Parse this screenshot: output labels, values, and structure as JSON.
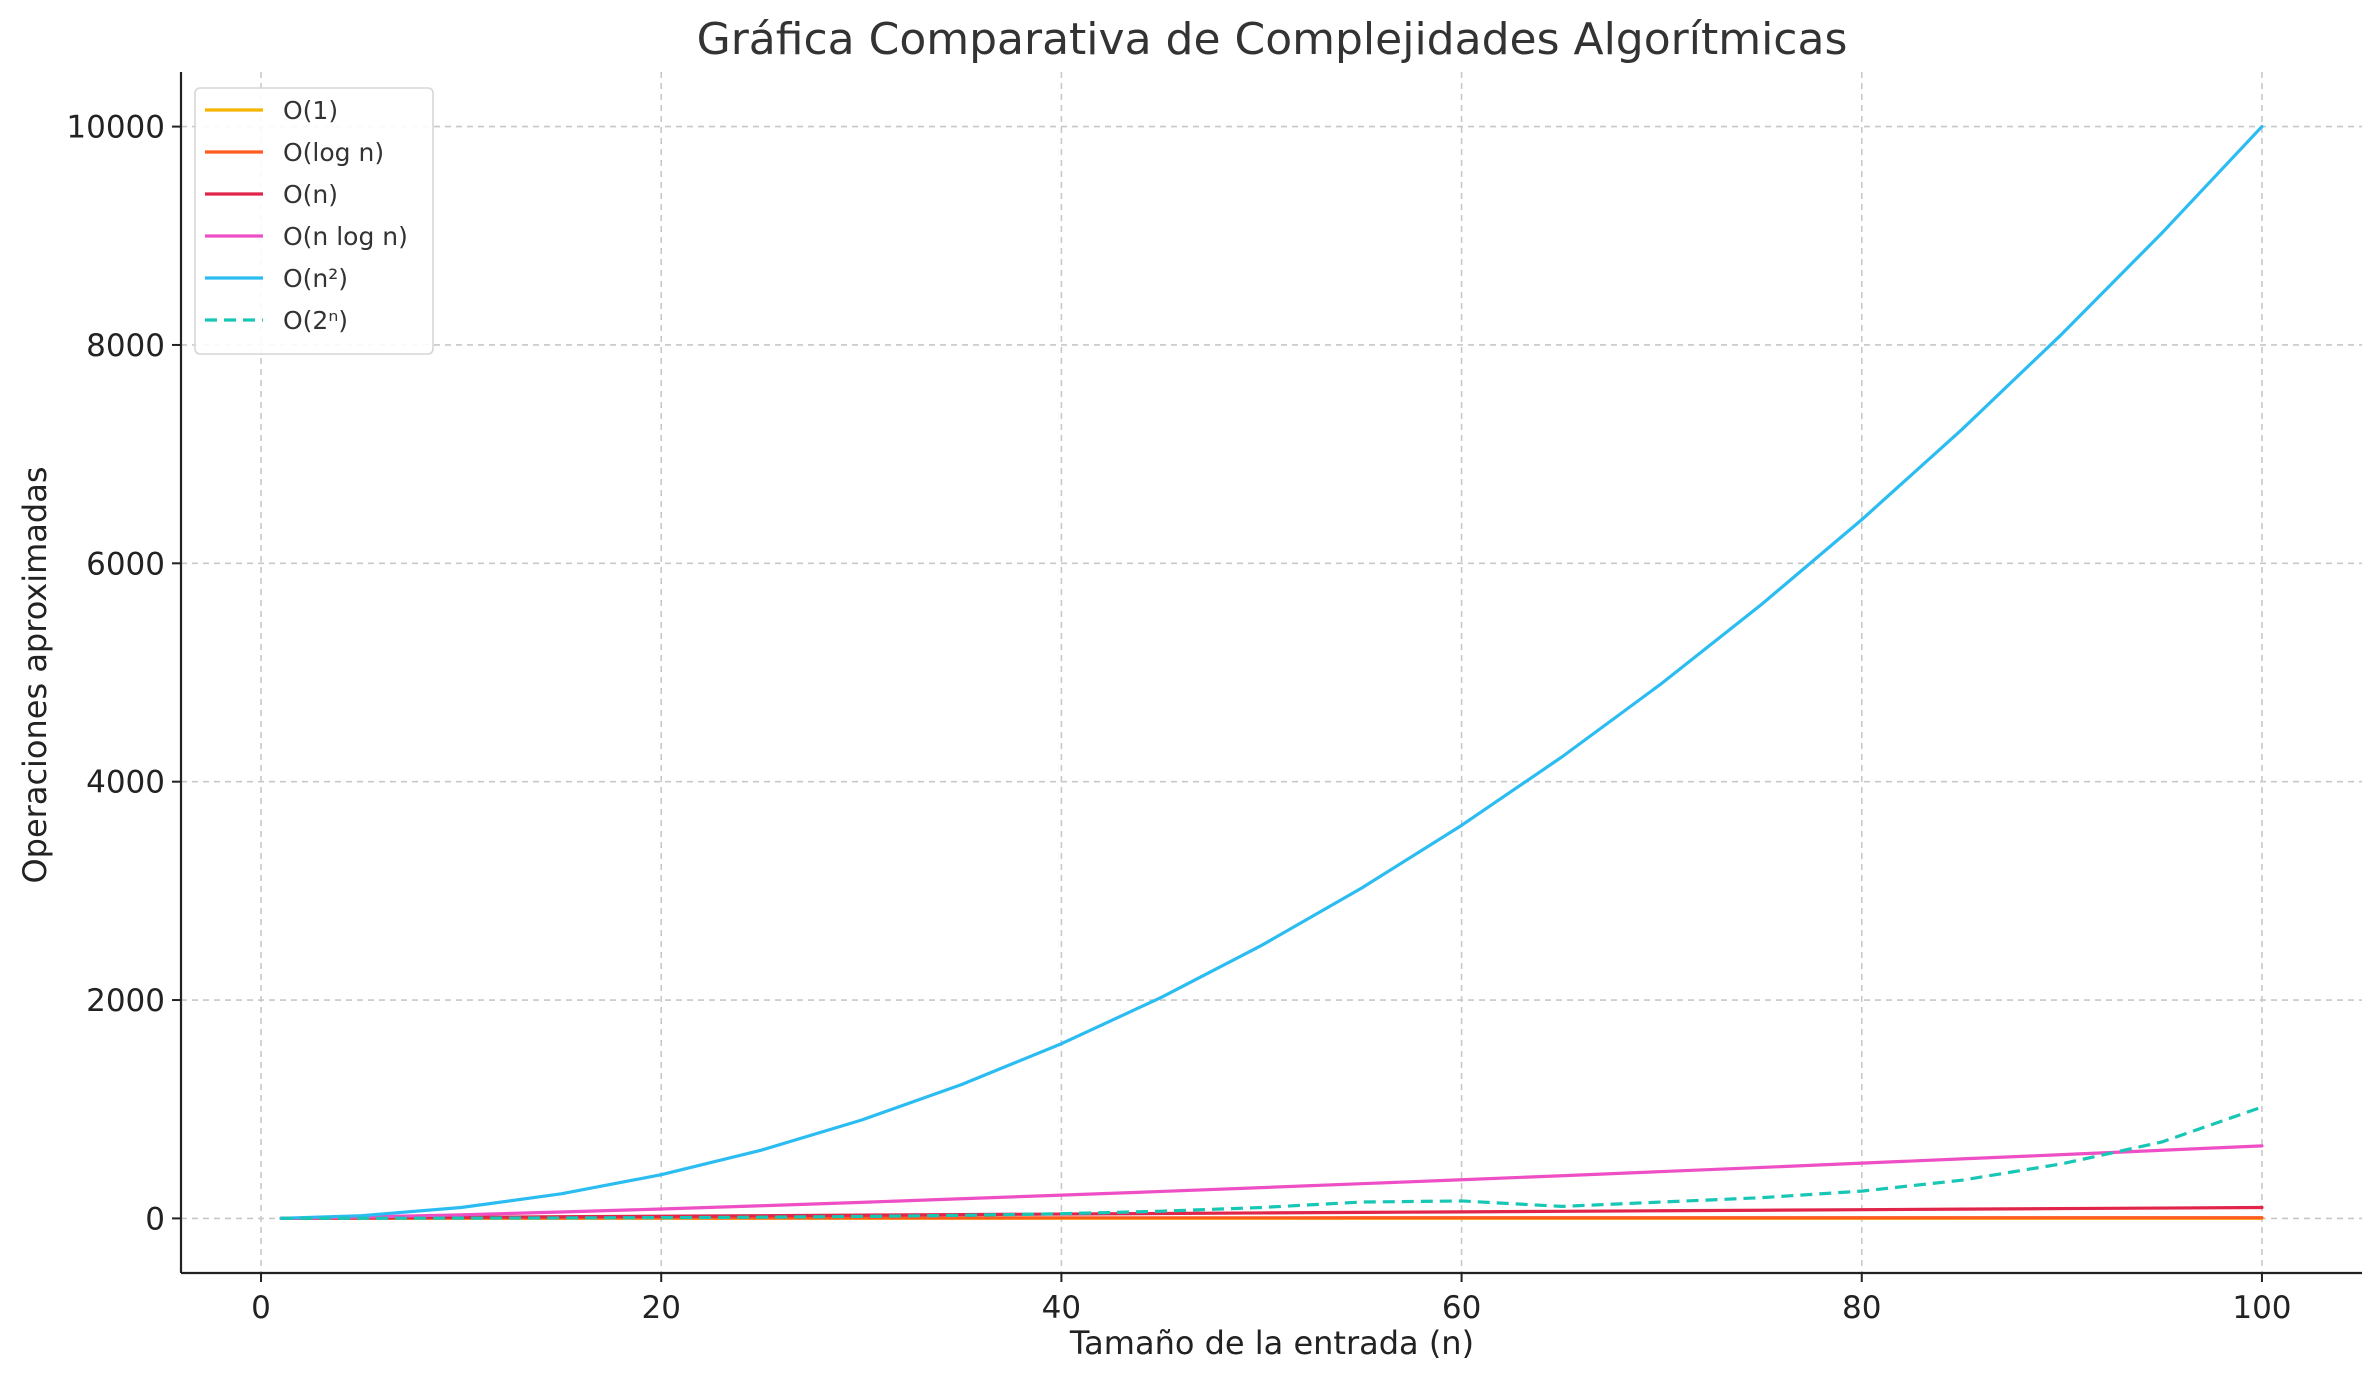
{
  "chart_data": {
    "type": "line",
    "title": "Gráfica Comparativa de Complejidades Algorítmicas",
    "xlabel": "Tamaño de la entrada (n)",
    "ylabel": "Operaciones aproximadas",
    "xlim": [
      -4,
      105
    ],
    "ylim": [
      -500,
      10500
    ],
    "x_ticks": [
      0,
      20,
      40,
      60,
      80,
      100
    ],
    "y_ticks": [
      0,
      2000,
      4000,
      6000,
      8000,
      10000
    ],
    "x_tick_labels": [
      "0",
      "20",
      "40",
      "60",
      "80",
      "100"
    ],
    "y_tick_labels": [
      "0",
      "2000",
      "4000",
      "6000",
      "8000",
      "10000"
    ],
    "grid": true,
    "legend_position": "top-left",
    "x": [
      1,
      5,
      10,
      15,
      20,
      25,
      30,
      35,
      40,
      45,
      50,
      55,
      60,
      65,
      70,
      75,
      80,
      85,
      90,
      95,
      100
    ],
    "series": [
      {
        "name": "O(1)",
        "color": "#f4b400",
        "dash": "solid",
        "values": [
          1,
          1,
          1,
          1,
          1,
          1,
          1,
          1,
          1,
          1,
          1,
          1,
          1,
          1,
          1,
          1,
          1,
          1,
          1,
          1,
          1
        ]
      },
      {
        "name": "O(log n)",
        "color": "#ff5a1f",
        "dash": "solid",
        "values": [
          0,
          2.3,
          3.3,
          3.9,
          4.3,
          4.6,
          4.9,
          5.1,
          5.3,
          5.5,
          5.6,
          5.8,
          5.9,
          6.0,
          6.1,
          6.2,
          6.3,
          6.4,
          6.5,
          6.6,
          6.6
        ]
      },
      {
        "name": "O(n)",
        "color": "#e0244a",
        "dash": "solid",
        "values": [
          1,
          5,
          10,
          15,
          20,
          25,
          30,
          35,
          40,
          45,
          50,
          55,
          60,
          65,
          70,
          75,
          80,
          85,
          90,
          95,
          100
        ]
      },
      {
        "name": "O(n log n)",
        "color": "#ee4fc4",
        "dash": "solid",
        "values": [
          0,
          12,
          33,
          59,
          86,
          116,
          147,
          180,
          213,
          247,
          282,
          318,
          354,
          391,
          429,
          467,
          506,
          545,
          584,
          624,
          664
        ]
      },
      {
        "name": "O(n²)",
        "color": "#2bbcf2",
        "dash": "solid",
        "values": [
          1,
          25,
          100,
          225,
          400,
          625,
          900,
          1225,
          1600,
          2025,
          2500,
          3025,
          3600,
          4225,
          4900,
          5625,
          6400,
          7225,
          8100,
          9025,
          10000
        ]
      },
      {
        "name": "O(2ⁿ)",
        "color": "#17c6b5",
        "dash": "dashed",
        "values": [
          1,
          1.5,
          2.6,
          4.3,
          7,
          11,
          18,
          28,
          43,
          66,
          100,
          150,
          160,
          110,
          150,
          190,
          250,
          350,
          500,
          700,
          1020
        ]
      }
    ]
  }
}
